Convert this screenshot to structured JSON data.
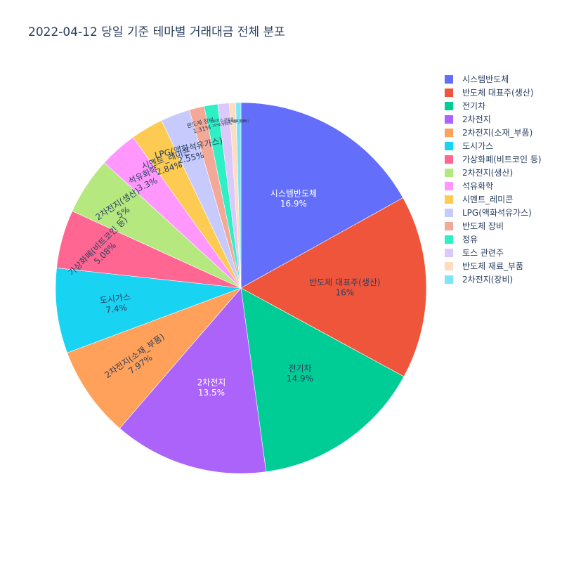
{
  "chart_data": {
    "type": "pie",
    "title": "2022-04-12 당일 기준 테마별 거래대금 전체 분포",
    "legend_position": "top-right",
    "direction": "clockwise",
    "slices": [
      {
        "label": "시스템반도체",
        "value": 16.9,
        "percent_text": "16.9%",
        "color": "#636efa"
      },
      {
        "label": "반도체 대표주(생산)",
        "value": 16.0,
        "percent_text": "16%",
        "color": "#ef553b"
      },
      {
        "label": "전기차",
        "value": 14.9,
        "percent_text": "14.9%",
        "color": "#00cc96"
      },
      {
        "label": "2차전지",
        "value": 13.5,
        "percent_text": "13.5%",
        "color": "#ab63fa"
      },
      {
        "label": "2차전지(소재_부품)",
        "value": 7.97,
        "percent_text": "7.97%",
        "color": "#ffa15a"
      },
      {
        "label": "도시가스",
        "value": 7.4,
        "percent_text": "7.4%",
        "color": "#19d3f3"
      },
      {
        "label": "가상화폐(비트코인 등)",
        "value": 5.08,
        "percent_text": "5.08%",
        "color": "#ff6692"
      },
      {
        "label": "2차전지(생산)",
        "value": 5.0,
        "percent_text": "5%",
        "color": "#b6e880"
      },
      {
        "label": "석유화학",
        "value": 3.3,
        "percent_text": "3.3%",
        "color": "#ff97ff"
      },
      {
        "label": "시멘트_레미콘",
        "value": 2.84,
        "percent_text": "2.84%",
        "color": "#fecb52"
      },
      {
        "label": "LPG(액화석유가스)",
        "value": 2.55,
        "percent_text": "2.55%",
        "color": "#c6cafd"
      },
      {
        "label": "반도체 장비",
        "value": 1.31,
        "percent_text": "1.31%",
        "color": "#f4a898"
      },
      {
        "label": "정유",
        "value": 1.18,
        "percent_text": "1.18%",
        "color": "#2ff0c4"
      },
      {
        "label": "토스 관련주",
        "value": 0.999,
        "percent_text": "0.999%",
        "color": "#dcc9fb"
      },
      {
        "label": "반도체 재료_부품",
        "value": 0.55,
        "percent_text": "",
        "color": "#fedcc0"
      },
      {
        "label": "2차전지(장비)",
        "value": 0.45,
        "percent_text": "",
        "color": "#7ee5f7"
      }
    ]
  }
}
